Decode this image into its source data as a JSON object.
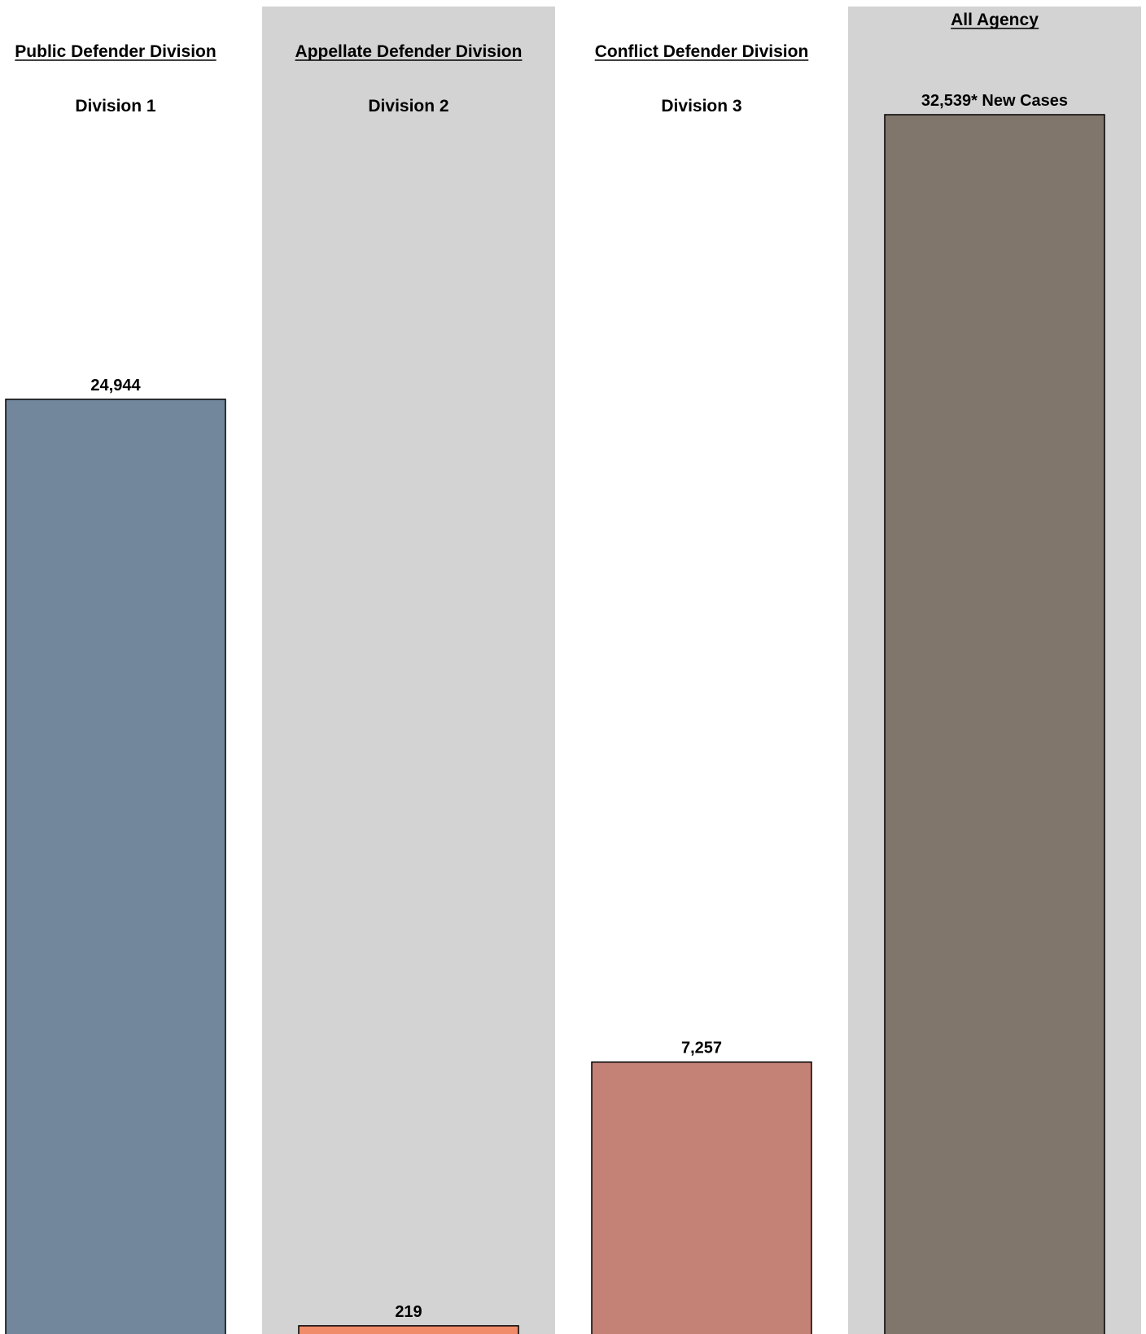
{
  "chart_data": {
    "type": "bar",
    "categories": [
      "Public Defender Division",
      "Appellate Defender Division",
      "Conflict Defender Division",
      "All Agency"
    ],
    "subtitles": [
      "Division 1",
      "Division 2",
      "Division 3",
      ""
    ],
    "values": [
      24944,
      219,
      7257,
      32539
    ],
    "data_labels": [
      "24,944",
      "219",
      "7,257",
      "32,539* New Cases"
    ],
    "colors": [
      "#72879b",
      "#f08c6a",
      "#c48277",
      "#80766b"
    ],
    "panel_shading": [
      "#ffffff",
      "#d3d3d3",
      "#ffffff",
      "#d3d3d3"
    ],
    "title": "",
    "xlabel": "",
    "ylabel": ""
  }
}
